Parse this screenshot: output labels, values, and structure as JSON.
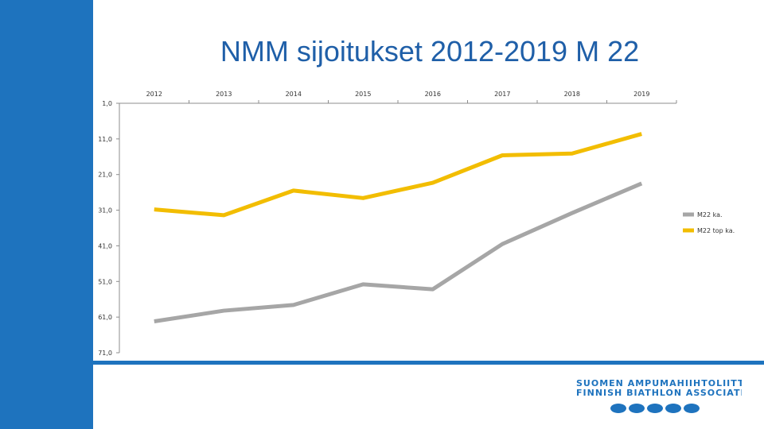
{
  "title": "NMM sijoitukset 2012-2019 M 22",
  "colors": {
    "accent": "#1e73be",
    "title": "#1f5fa8",
    "series_gray": "#a6a6a6",
    "series_yellow": "#f2bd00"
  },
  "logo": {
    "line1": "SUOMEN AMPUMAHIIHTOLIITTO",
    "line2": "FINNISH BIATHLON ASSOCIATION"
  },
  "chart_data": {
    "type": "line",
    "title": "NMM sijoitukset 2012-2019 M 22",
    "categories": [
      "2012",
      "2013",
      "2014",
      "2015",
      "2016",
      "2017",
      "2018",
      "2019"
    ],
    "y_tick_labels": [
      "1,0",
      "11,0",
      "21,0",
      "31,0",
      "41,0",
      "51,0",
      "61,0",
      "71,0"
    ],
    "ylim": [
      71,
      1
    ],
    "y_inverted": true,
    "x_axis_position": "top",
    "legend_position": "right",
    "grid": false,
    "series": [
      {
        "name": "M22 ka.",
        "color": "#a6a6a6",
        "values": [
          62.2,
          59.2,
          57.6,
          51.8,
          53.2,
          40.5,
          31.8,
          23.5
        ]
      },
      {
        "name": "M22 top ka.",
        "color": "#f2bd00",
        "values": [
          30.8,
          32.4,
          25.5,
          27.6,
          23.3,
          15.6,
          15.1,
          9.6
        ]
      }
    ]
  }
}
